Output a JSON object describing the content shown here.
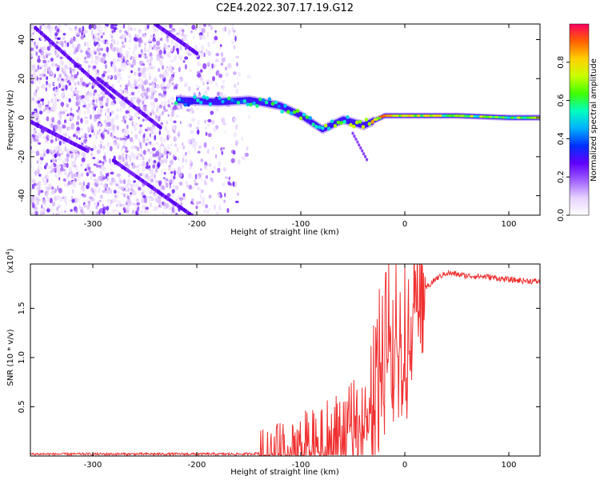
{
  "title": "C2E4.2022.307.17.19.G12",
  "chart_data": [
    {
      "type": "heatmap",
      "xlabel": "Height of straight line (km)",
      "ylabel": "Frequency (Hz)",
      "xlim": [
        -360,
        130
      ],
      "ylim": [
        -50,
        48
      ],
      "xticks": [
        -300,
        -200,
        -100,
        0,
        100
      ],
      "yticks": [
        -40,
        -20,
        0,
        20,
        40
      ],
      "colorbar": {
        "label": "Normalized spectral amplitude",
        "range": [
          0.0,
          1.0
        ],
        "ticks": [
          "0.0",
          "0.2",
          "0.4",
          "0.6",
          "0.8"
        ],
        "tick_values": [
          0.0,
          0.2,
          0.4,
          0.6,
          0.8
        ],
        "colormap": [
          "#ffffff",
          "#e6d2ff",
          "#a060ff",
          "#6000ff",
          "#0030ff",
          "#00b0ff",
          "#00ffc0",
          "#40ff00",
          "#c8ff00",
          "#ffd000",
          "#ff6000",
          "#ff0060"
        ]
      },
      "main_track": {
        "description_points": [
          {
            "x": -220,
            "freq": 9,
            "amp": 0.45
          },
          {
            "x": -180,
            "freq": 8,
            "amp": 0.45
          },
          {
            "x": -150,
            "freq": 9,
            "amp": 0.5
          },
          {
            "x": -120,
            "freq": 6,
            "amp": 0.5
          },
          {
            "x": -100,
            "freq": 1,
            "amp": 0.55
          },
          {
            "x": -80,
            "freq": -6,
            "amp": 0.6
          },
          {
            "x": -60,
            "freq": -1,
            "amp": 0.55
          },
          {
            "x": -40,
            "freq": -4,
            "amp": 0.7
          },
          {
            "x": -20,
            "freq": 1,
            "amp": 0.85
          },
          {
            "x": 0,
            "freq": 1,
            "amp": 0.75
          },
          {
            "x": 50,
            "freq": 1,
            "amp": 0.65
          },
          {
            "x": 100,
            "freq": 0,
            "amp": 0.6
          },
          {
            "x": 130,
            "freq": 0,
            "amp": 0.7
          }
        ]
      },
      "streaks": [
        {
          "x": [
            -355,
            -280
          ],
          "freq": [
            46,
            10
          ]
        },
        {
          "x": [
            -295,
            -235
          ],
          "freq": [
            20,
            -5
          ]
        },
        {
          "x": [
            -360,
            -305
          ],
          "freq": [
            -2,
            -17
          ]
        },
        {
          "x": [
            -280,
            -205
          ],
          "freq": [
            -22,
            -50
          ]
        },
        {
          "x": [
            -240,
            -200
          ],
          "freq": [
            48,
            33
          ]
        }
      ]
    },
    {
      "type": "line",
      "xlabel": "Height of straight line (km)",
      "ylabel": "SNR (10 * v/v)",
      "yscale_label": "(x10^4)",
      "xlim": [
        -360,
        130
      ],
      "ylim": [
        0,
        1.95
      ],
      "xticks": [
        -300,
        -200,
        -100,
        0,
        100
      ],
      "yticks": [
        0.5,
        1.0,
        1.5
      ],
      "ytick_labels": [
        "0.5",
        "1.0",
        "1.5"
      ],
      "series": [
        {
          "color": "#f03030",
          "x": [
            -360,
            -250,
            -150,
            -130,
            -120,
            -100,
            -80,
            -60,
            -45,
            -35,
            -30,
            -20,
            -10,
            0,
            5,
            10,
            20,
            30,
            40,
            60,
            80,
            100,
            130
          ],
          "y": [
            0.02,
            0.02,
            0.02,
            0.04,
            0.08,
            0.15,
            0.22,
            0.28,
            0.4,
            0.55,
            0.8,
            1.2,
            1.35,
            1.45,
            1.55,
            1.6,
            1.7,
            1.8,
            1.86,
            1.83,
            1.82,
            1.79,
            1.77
          ]
        }
      ]
    }
  ]
}
